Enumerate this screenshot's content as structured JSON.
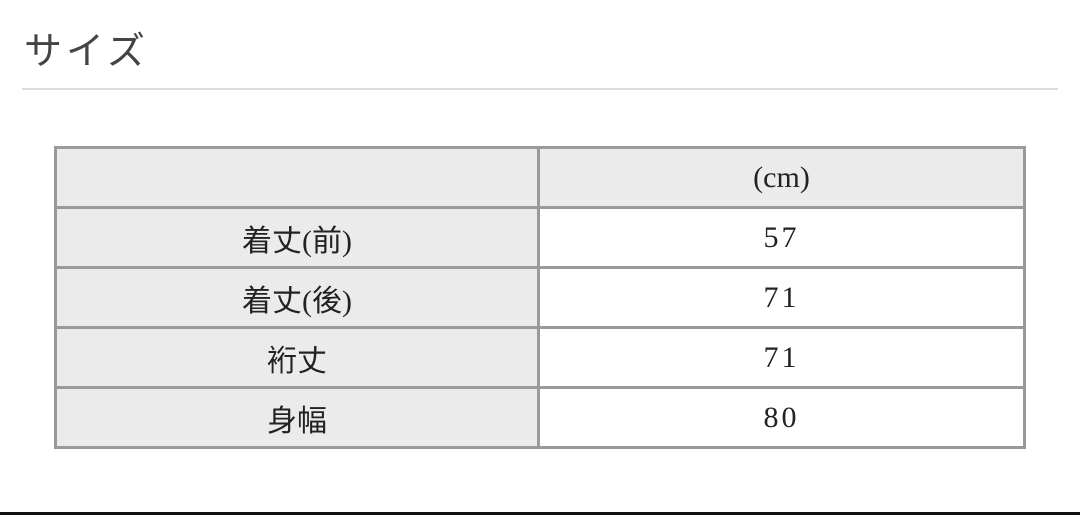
{
  "section_title": "サイズ",
  "table": {
    "header": [
      "",
      "(cm)"
    ],
    "rows": [
      {
        "label": "着丈(前)",
        "value": "57"
      },
      {
        "label": "着丈(後)",
        "value": "71"
      },
      {
        "label": "裄丈",
        "value": "71"
      },
      {
        "label": "身幅",
        "value": "80"
      }
    ]
  }
}
